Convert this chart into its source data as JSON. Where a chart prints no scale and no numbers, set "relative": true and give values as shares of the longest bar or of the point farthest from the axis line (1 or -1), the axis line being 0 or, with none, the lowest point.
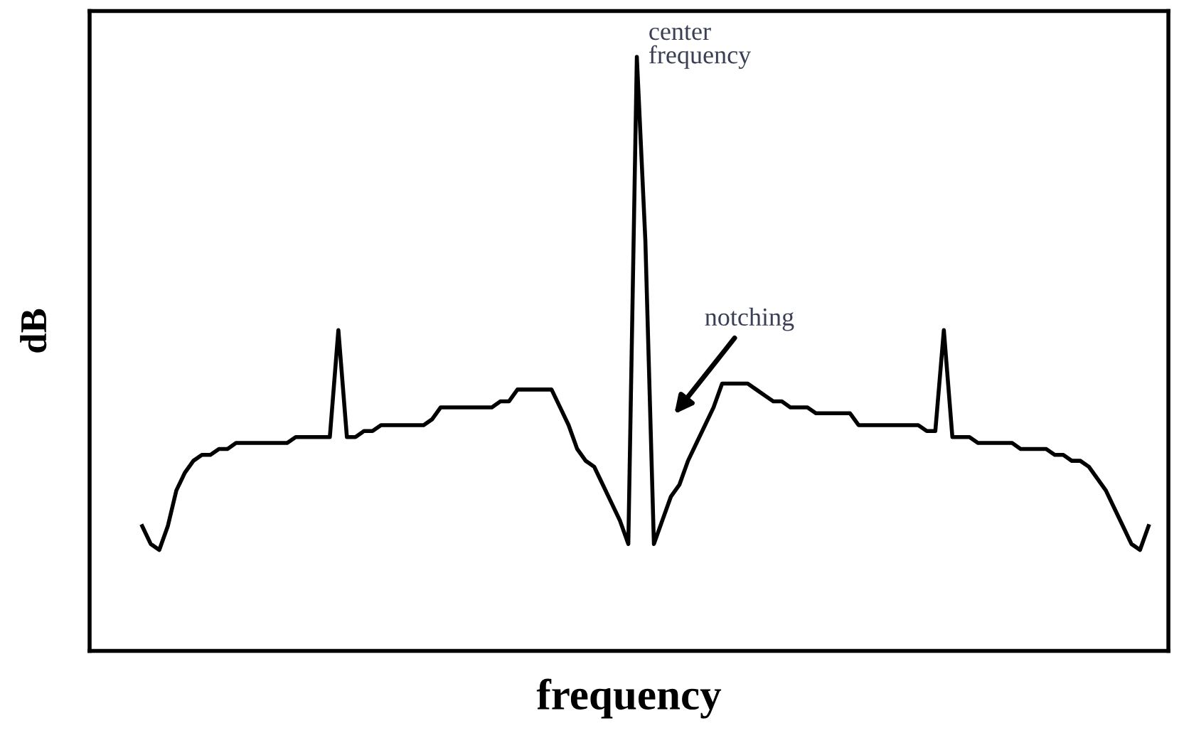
{
  "chart_data": {
    "type": "line",
    "xlabel": "frequency",
    "ylabel": "dB",
    "relative": true,
    "tick_labels": false,
    "legend": false,
    "marker": "none",
    "line_style": "solid",
    "categories": [
      null,
      null,
      null,
      null,
      null,
      null,
      null,
      null,
      null,
      null,
      null,
      null,
      null,
      null,
      null,
      null,
      null,
      null,
      null,
      null,
      null,
      null,
      null,
      null,
      null,
      null,
      null,
      null,
      null,
      null,
      null,
      null,
      null,
      null,
      null,
      null,
      null,
      null,
      null,
      null,
      null,
      null,
      null,
      null,
      null,
      null,
      null,
      null,
      null,
      null,
      null,
      null,
      null,
      null,
      null,
      null,
      null,
      null,
      null,
      null,
      null,
      null,
      null,
      null,
      null,
      null,
      null,
      null,
      null,
      null,
      null,
      null,
      null,
      null,
      null,
      null,
      null,
      null,
      null,
      null,
      null,
      null,
      null,
      null,
      null,
      null,
      null,
      null,
      null,
      null,
      null,
      null,
      null,
      null,
      null,
      null,
      null,
      null,
      null,
      null,
      null,
      null,
      null,
      null,
      null,
      null,
      null,
      null,
      null,
      null,
      null,
      null,
      null,
      null,
      null,
      null,
      null,
      null,
      null
    ],
    "series": [
      {
        "color": "#000000",
        "values": [
          0.21,
          0.18,
          0.17,
          0.21,
          0.27,
          0.3,
          0.32,
          0.33,
          0.33,
          0.34,
          0.34,
          0.35,
          0.35,
          0.35,
          0.35,
          0.35,
          0.35,
          0.35,
          0.36,
          0.36,
          0.36,
          0.36,
          0.36,
          0.54,
          0.36,
          0.36,
          0.37,
          0.37,
          0.38,
          0.38,
          0.38,
          0.38,
          0.38,
          0.38,
          0.39,
          0.41,
          0.41,
          0.41,
          0.41,
          0.41,
          0.41,
          0.41,
          0.42,
          0.42,
          0.44,
          0.44,
          0.44,
          0.44,
          0.44,
          0.41,
          0.38,
          0.34,
          0.32,
          0.31,
          0.28,
          0.25,
          0.22,
          0.18,
          1,
          0.69,
          0.18,
          0.22,
          0.26,
          0.28,
          0.32,
          0.35,
          0.38,
          0.41,
          0.45,
          0.45,
          0.45,
          0.45,
          0.44,
          0.43,
          0.42,
          0.42,
          0.41,
          0.41,
          0.41,
          0.4,
          0.4,
          0.4,
          0.4,
          0.4,
          0.38,
          0.38,
          0.38,
          0.38,
          0.38,
          0.38,
          0.38,
          0.38,
          0.37,
          0.37,
          0.54,
          0.36,
          0.36,
          0.36,
          0.35,
          0.35,
          0.35,
          0.35,
          0.35,
          0.34,
          0.34,
          0.34,
          0.34,
          0.33,
          0.33,
          0.32,
          0.32,
          0.31,
          0.29,
          0.27,
          0.24,
          0.21,
          0.18,
          0.17,
          0.21
        ]
      }
    ],
    "annotations": [
      "center\nfrequency",
      "notching"
    ]
  }
}
